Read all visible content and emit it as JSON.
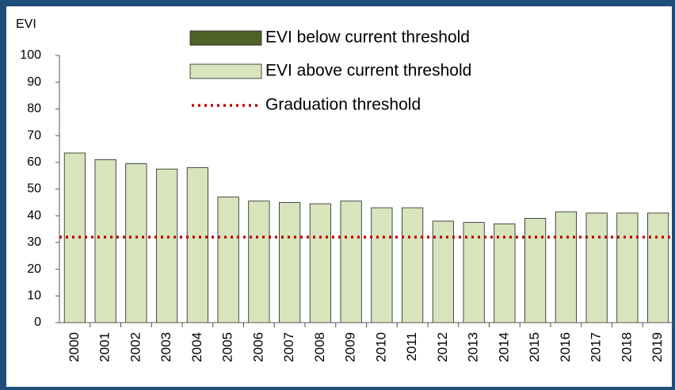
{
  "chart_data": {
    "type": "bar",
    "y_label": "EVI",
    "categories": [
      "2000",
      "2001",
      "2002",
      "2003",
      "2004",
      "2005",
      "2006",
      "2007",
      "2008",
      "2009",
      "2010",
      "2011",
      "2012",
      "2013",
      "2014",
      "2015",
      "2016",
      "2017",
      "2018",
      "2019"
    ],
    "series": [
      {
        "name": "EVI below current threshold",
        "color": "#4f6228",
        "values": [
          null,
          null,
          null,
          null,
          null,
          null,
          null,
          null,
          null,
          null,
          null,
          null,
          null,
          null,
          null,
          null,
          null,
          null,
          null,
          null
        ]
      },
      {
        "name": "EVI above current threshold",
        "color": "#d7e4bc",
        "values": [
          63.5,
          61,
          59.5,
          57.5,
          58,
          47,
          45.5,
          45,
          44.5,
          45.5,
          43,
          43,
          38,
          37.5,
          37,
          39,
          41.5,
          41,
          41,
          41
        ]
      }
    ],
    "threshold": {
      "name": "Graduation threshold",
      "value": 32,
      "color": "#c00000"
    },
    "ylim": [
      0,
      100
    ],
    "yticks": [
      0,
      10,
      20,
      30,
      40,
      50,
      60,
      70,
      80,
      90,
      100
    ],
    "grid": false
  }
}
